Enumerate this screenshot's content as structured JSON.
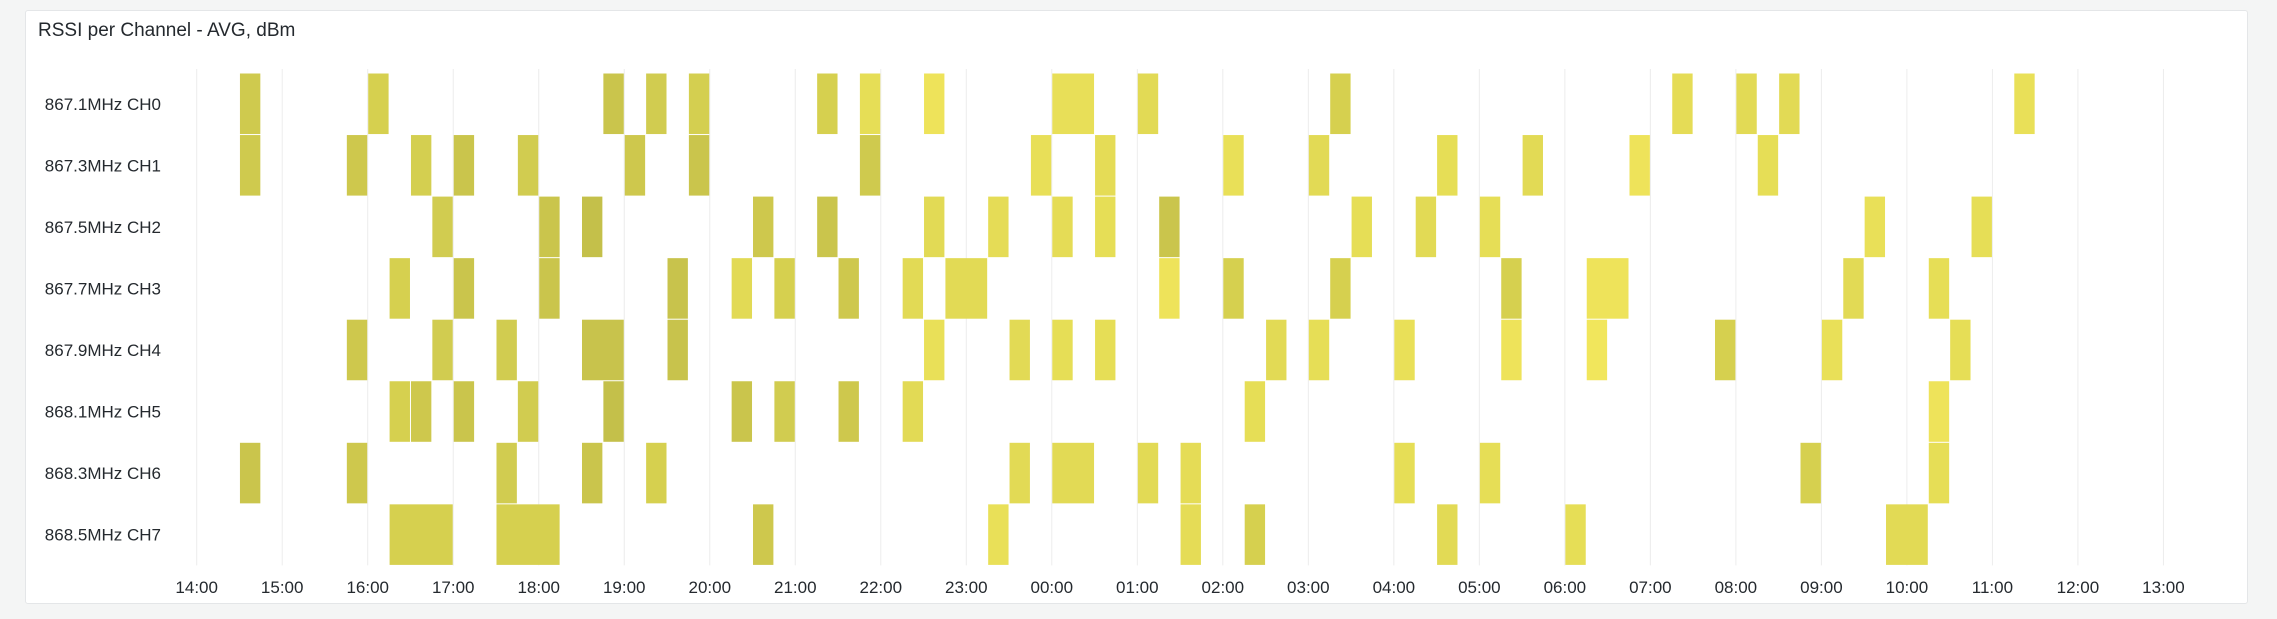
{
  "panel": {
    "title": "RSSI per Channel - AVG, dBm"
  },
  "chart_data": {
    "type": "heatmap",
    "title": "RSSI per Channel - AVG, dBm",
    "xlabel": "",
    "ylabel": "",
    "grid": true,
    "y_categories": [
      "867.1MHz CH0",
      "867.3MHz CH1",
      "867.5MHz CH2",
      "867.7MHz CH3",
      "867.9MHz CH4",
      "868.1MHz CH5",
      "868.3MHz CH6",
      "868.5MHz CH7"
    ],
    "x_ticks": [
      "14:00",
      "15:00",
      "16:00",
      "17:00",
      "18:00",
      "19:00",
      "20:00",
      "21:00",
      "22:00",
      "23:00",
      "00:00",
      "01:00",
      "02:00",
      "03:00",
      "04:00",
      "05:00",
      "06:00",
      "07:00",
      "08:00",
      "09:00",
      "10:00",
      "11:00",
      "12:00",
      "13:00"
    ],
    "bucket_minutes": 15,
    "cells": [
      {
        "channel": 0,
        "start": "14:30",
        "end": "14:45",
        "color": "#cfca4e"
      },
      {
        "channel": 0,
        "start": "16:00",
        "end": "16:15",
        "color": "#d6d04f"
      },
      {
        "channel": 0,
        "start": "18:45",
        "end": "19:00",
        "color": "#cac54c"
      },
      {
        "channel": 0,
        "start": "19:15",
        "end": "19:30",
        "color": "#d1cc50"
      },
      {
        "channel": 0,
        "start": "19:45",
        "end": "20:00",
        "color": "#d4cf50"
      },
      {
        "channel": 0,
        "start": "21:15",
        "end": "21:30",
        "color": "#d6d04f"
      },
      {
        "channel": 0,
        "start": "21:45",
        "end": "22:00",
        "color": "#e6de56"
      },
      {
        "channel": 0,
        "start": "22:30",
        "end": "22:45",
        "color": "#eee35a"
      },
      {
        "channel": 0,
        "start": "00:00",
        "end": "00:30",
        "color": "#e8df58"
      },
      {
        "channel": 0,
        "start": "01:00",
        "end": "01:15",
        "color": "#e2da55"
      },
      {
        "channel": 0,
        "start": "03:15",
        "end": "03:30",
        "color": "#d6d04f"
      },
      {
        "channel": 0,
        "start": "07:15",
        "end": "07:30",
        "color": "#e5dc56"
      },
      {
        "channel": 0,
        "start": "08:00",
        "end": "08:15",
        "color": "#e2da55"
      },
      {
        "channel": 0,
        "start": "08:30",
        "end": "08:45",
        "color": "#e2da55"
      },
      {
        "channel": 0,
        "start": "11:15",
        "end": "11:30",
        "color": "#e9e058"
      },
      {
        "channel": 1,
        "start": "14:30",
        "end": "14:45",
        "color": "#cfca4e"
      },
      {
        "channel": 1,
        "start": "15:45",
        "end": "16:00",
        "color": "#cec84d"
      },
      {
        "channel": 1,
        "start": "16:30",
        "end": "16:45",
        "color": "#d4cf50"
      },
      {
        "channel": 1,
        "start": "17:00",
        "end": "17:15",
        "color": "#cac54c"
      },
      {
        "channel": 1,
        "start": "17:45",
        "end": "18:00",
        "color": "#d1cc50"
      },
      {
        "channel": 1,
        "start": "19:00",
        "end": "19:15",
        "color": "#cec84d"
      },
      {
        "channel": 1,
        "start": "19:45",
        "end": "20:00",
        "color": "#cac54c"
      },
      {
        "channel": 1,
        "start": "21:45",
        "end": "22:00",
        "color": "#cfca4e"
      },
      {
        "channel": 1,
        "start": "23:45",
        "end": "00:00",
        "color": "#e8df58"
      },
      {
        "channel": 1,
        "start": "00:30",
        "end": "00:45",
        "color": "#e5dc56"
      },
      {
        "channel": 1,
        "start": "02:00",
        "end": "02:15",
        "color": "#e9e058"
      },
      {
        "channel": 1,
        "start": "03:00",
        "end": "03:15",
        "color": "#e2da55"
      },
      {
        "channel": 1,
        "start": "04:30",
        "end": "04:45",
        "color": "#e6de56"
      },
      {
        "channel": 1,
        "start": "05:30",
        "end": "05:45",
        "color": "#e2da55"
      },
      {
        "channel": 1,
        "start": "06:45",
        "end": "07:00",
        "color": "#eee35a"
      },
      {
        "channel": 1,
        "start": "08:15",
        "end": "08:30",
        "color": "#e6de56"
      },
      {
        "channel": 2,
        "start": "16:45",
        "end": "17:00",
        "color": "#d1cc50"
      },
      {
        "channel": 2,
        "start": "18:00",
        "end": "18:15",
        "color": "#cac54c"
      },
      {
        "channel": 2,
        "start": "18:30",
        "end": "18:45",
        "color": "#c4c04a"
      },
      {
        "channel": 2,
        "start": "20:30",
        "end": "20:45",
        "color": "#cec84d"
      },
      {
        "channel": 2,
        "start": "21:15",
        "end": "21:30",
        "color": "#cac54c"
      },
      {
        "channel": 2,
        "start": "22:30",
        "end": "22:45",
        "color": "#e2da55"
      },
      {
        "channel": 2,
        "start": "23:15",
        "end": "23:30",
        "color": "#e5dc56"
      },
      {
        "channel": 2,
        "start": "00:00",
        "end": "00:15",
        "color": "#e5dc56"
      },
      {
        "channel": 2,
        "start": "00:30",
        "end": "00:45",
        "color": "#e6de56"
      },
      {
        "channel": 2,
        "start": "01:15",
        "end": "01:30",
        "color": "#cac54c"
      },
      {
        "channel": 2,
        "start": "03:30",
        "end": "03:45",
        "color": "#e6de56"
      },
      {
        "channel": 2,
        "start": "04:15",
        "end": "04:30",
        "color": "#e2da55"
      },
      {
        "channel": 2,
        "start": "05:00",
        "end": "05:15",
        "color": "#e6de56"
      },
      {
        "channel": 2,
        "start": "09:30",
        "end": "09:45",
        "color": "#e9e058"
      },
      {
        "channel": 2,
        "start": "10:45",
        "end": "11:00",
        "color": "#e6de56"
      },
      {
        "channel": 3,
        "start": "16:15",
        "end": "16:30",
        "color": "#d6d04f"
      },
      {
        "channel": 3,
        "start": "17:00",
        "end": "17:15",
        "color": "#cac54c"
      },
      {
        "channel": 3,
        "start": "18:00",
        "end": "18:15",
        "color": "#cac54c"
      },
      {
        "channel": 3,
        "start": "19:30",
        "end": "19:45",
        "color": "#c8c34c"
      },
      {
        "channel": 3,
        "start": "20:15",
        "end": "20:30",
        "color": "#e2da55"
      },
      {
        "channel": 3,
        "start": "20:45",
        "end": "21:00",
        "color": "#d6d04f"
      },
      {
        "channel": 3,
        "start": "21:30",
        "end": "21:45",
        "color": "#cec84d"
      },
      {
        "channel": 3,
        "start": "22:15",
        "end": "22:30",
        "color": "#e2da55"
      },
      {
        "channel": 3,
        "start": "22:45",
        "end": "23:15",
        "color": "#e2da55"
      },
      {
        "channel": 3,
        "start": "01:15",
        "end": "01:30",
        "color": "#eee35a"
      },
      {
        "channel": 3,
        "start": "02:00",
        "end": "02:15",
        "color": "#d6d04f"
      },
      {
        "channel": 3,
        "start": "03:15",
        "end": "03:30",
        "color": "#d6d04f"
      },
      {
        "channel": 3,
        "start": "05:15",
        "end": "05:30",
        "color": "#d6d04f"
      },
      {
        "channel": 3,
        "start": "06:15",
        "end": "06:45",
        "color": "#eee35a"
      },
      {
        "channel": 3,
        "start": "09:15",
        "end": "09:30",
        "color": "#e2da55"
      },
      {
        "channel": 3,
        "start": "10:15",
        "end": "10:30",
        "color": "#e6de56"
      },
      {
        "channel": 4,
        "start": "15:45",
        "end": "16:00",
        "color": "#cec84d"
      },
      {
        "channel": 4,
        "start": "16:45",
        "end": "17:00",
        "color": "#d1cc50"
      },
      {
        "channel": 4,
        "start": "17:30",
        "end": "17:45",
        "color": "#d1cc50"
      },
      {
        "channel": 4,
        "start": "18:30",
        "end": "19:00",
        "color": "#c8c34c"
      },
      {
        "channel": 4,
        "start": "19:30",
        "end": "19:45",
        "color": "#c8c34c"
      },
      {
        "channel": 4,
        "start": "22:30",
        "end": "22:45",
        "color": "#e9e058"
      },
      {
        "channel": 4,
        "start": "23:30",
        "end": "23:45",
        "color": "#e2da55"
      },
      {
        "channel": 4,
        "start": "00:00",
        "end": "00:15",
        "color": "#e6de56"
      },
      {
        "channel": 4,
        "start": "00:30",
        "end": "00:45",
        "color": "#e6de56"
      },
      {
        "channel": 4,
        "start": "02:30",
        "end": "02:45",
        "color": "#e2da55"
      },
      {
        "channel": 4,
        "start": "03:00",
        "end": "03:15",
        "color": "#e6de56"
      },
      {
        "channel": 4,
        "start": "04:00",
        "end": "04:15",
        "color": "#e9e058"
      },
      {
        "channel": 4,
        "start": "05:15",
        "end": "05:30",
        "color": "#eee35a"
      },
      {
        "channel": 4,
        "start": "06:15",
        "end": "06:30",
        "color": "#f1e65c"
      },
      {
        "channel": 4,
        "start": "07:45",
        "end": "08:00",
        "color": "#d6d04f"
      },
      {
        "channel": 4,
        "start": "09:00",
        "end": "09:15",
        "color": "#e9e058"
      },
      {
        "channel": 4,
        "start": "10:30",
        "end": "10:45",
        "color": "#e6de56"
      },
      {
        "channel": 5,
        "start": "16:15",
        "end": "16:30",
        "color": "#d6d04f"
      },
      {
        "channel": 5,
        "start": "16:30",
        "end": "16:45",
        "color": "#cec84d"
      },
      {
        "channel": 5,
        "start": "17:00",
        "end": "17:15",
        "color": "#cac54c"
      },
      {
        "channel": 5,
        "start": "17:45",
        "end": "18:00",
        "color": "#d1cc50"
      },
      {
        "channel": 5,
        "start": "18:45",
        "end": "19:00",
        "color": "#c4c04a"
      },
      {
        "channel": 5,
        "start": "20:15",
        "end": "20:30",
        "color": "#cac54c"
      },
      {
        "channel": 5,
        "start": "20:45",
        "end": "21:00",
        "color": "#d1cc50"
      },
      {
        "channel": 5,
        "start": "21:30",
        "end": "21:45",
        "color": "#cec84d"
      },
      {
        "channel": 5,
        "start": "22:15",
        "end": "22:30",
        "color": "#e2da55"
      },
      {
        "channel": 5,
        "start": "02:15",
        "end": "02:30",
        "color": "#e6de56"
      },
      {
        "channel": 5,
        "start": "10:15",
        "end": "10:30",
        "color": "#eee35a"
      },
      {
        "channel": 6,
        "start": "14:30",
        "end": "14:45",
        "color": "#cac54c"
      },
      {
        "channel": 6,
        "start": "15:45",
        "end": "16:00",
        "color": "#cec84d"
      },
      {
        "channel": 6,
        "start": "17:30",
        "end": "17:45",
        "color": "#d1cc50"
      },
      {
        "channel": 6,
        "start": "18:30",
        "end": "18:45",
        "color": "#cac54c"
      },
      {
        "channel": 6,
        "start": "19:15",
        "end": "19:30",
        "color": "#d6d04f"
      },
      {
        "channel": 6,
        "start": "23:30",
        "end": "23:45",
        "color": "#e2da55"
      },
      {
        "channel": 6,
        "start": "00:00",
        "end": "00:30",
        "color": "#e2da55"
      },
      {
        "channel": 6,
        "start": "01:00",
        "end": "01:15",
        "color": "#e2da55"
      },
      {
        "channel": 6,
        "start": "01:30",
        "end": "01:45",
        "color": "#e5dc56"
      },
      {
        "channel": 6,
        "start": "04:00",
        "end": "04:15",
        "color": "#e6de56"
      },
      {
        "channel": 6,
        "start": "05:00",
        "end": "05:15",
        "color": "#e6de56"
      },
      {
        "channel": 6,
        "start": "08:45",
        "end": "09:00",
        "color": "#d6d04f"
      },
      {
        "channel": 6,
        "start": "10:15",
        "end": "10:30",
        "color": "#e6de56"
      },
      {
        "channel": 7,
        "start": "16:15",
        "end": "17:00",
        "color": "#d6d04f"
      },
      {
        "channel": 7,
        "start": "17:30",
        "end": "18:15",
        "color": "#d6d04f"
      },
      {
        "channel": 7,
        "start": "20:30",
        "end": "20:45",
        "color": "#cec84d"
      },
      {
        "channel": 7,
        "start": "23:15",
        "end": "23:30",
        "color": "#e9e058"
      },
      {
        "channel": 7,
        "start": "01:30",
        "end": "01:45",
        "color": "#e5dc56"
      },
      {
        "channel": 7,
        "start": "02:15",
        "end": "02:30",
        "color": "#d6d04f"
      },
      {
        "channel": 7,
        "start": "04:30",
        "end": "04:45",
        "color": "#e2da55"
      },
      {
        "channel": 7,
        "start": "06:00",
        "end": "06:15",
        "color": "#e6de56"
      },
      {
        "channel": 7,
        "start": "09:45",
        "end": "10:15",
        "color": "#e2da55"
      }
    ]
  }
}
